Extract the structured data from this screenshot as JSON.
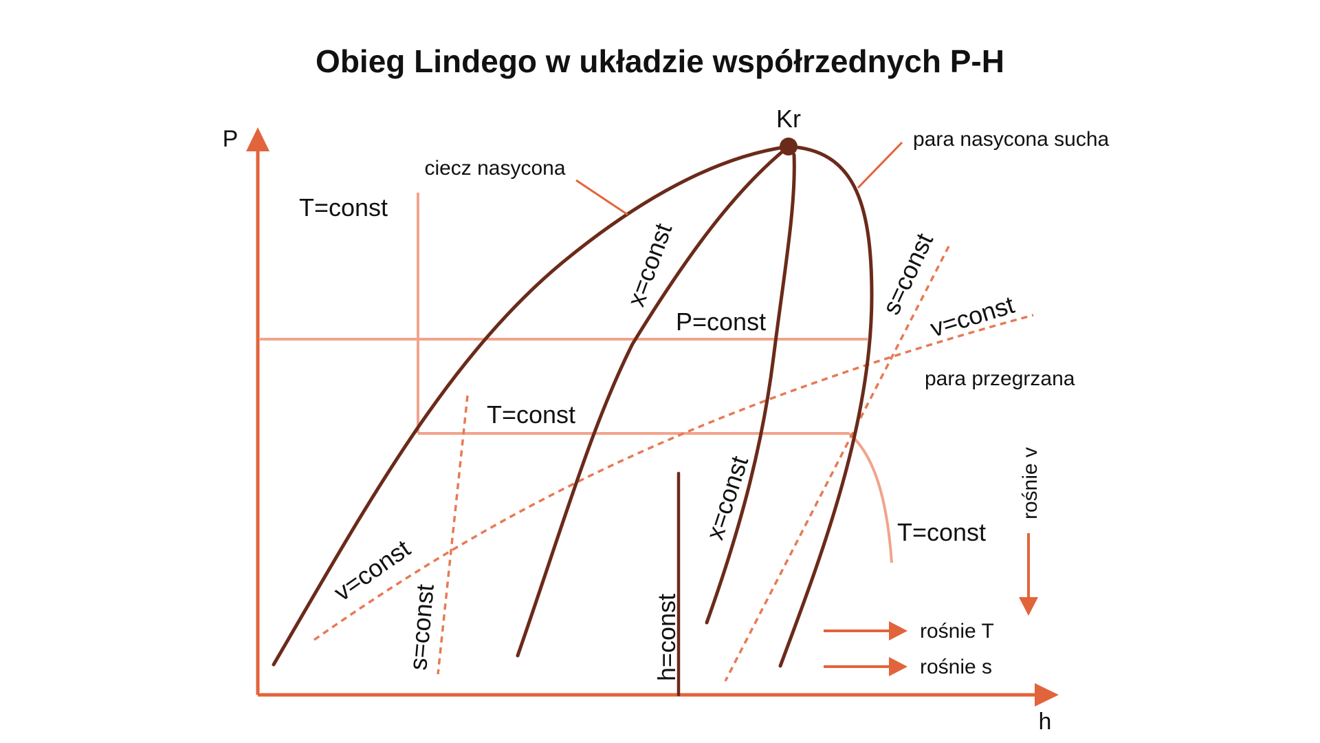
{
  "title": "Obieg Lindego w układzie współrzednych P-H",
  "axes": {
    "y_label": "P",
    "x_label": "h"
  },
  "critical_point": "Kr",
  "labels": {
    "saturated_liquid": "ciecz nasycona",
    "saturated_vapor": "para nasycona sucha",
    "superheated_vapor": "para przegrzana",
    "t_const_top": "T=const",
    "t_const_mid": "T=const",
    "t_const_right": "T=const",
    "p_const": "P=const",
    "x_const_upper": "x=const",
    "x_const_lower": "x=const",
    "s_const_left": "s=const",
    "s_const_right": "s=const",
    "v_const_left": "v=const",
    "v_const_right": "v=const",
    "h_const": "h=const"
  },
  "legend": {
    "increases_v": "rośnie v",
    "increases_t": "rośnie T",
    "increases_s": "rośnie s"
  },
  "colors": {
    "axis": "#e2643a",
    "curve_dark": "#6b2a1a",
    "curve_light": "#f2a38c",
    "dashed": "#e67a55",
    "text": "#111111"
  }
}
